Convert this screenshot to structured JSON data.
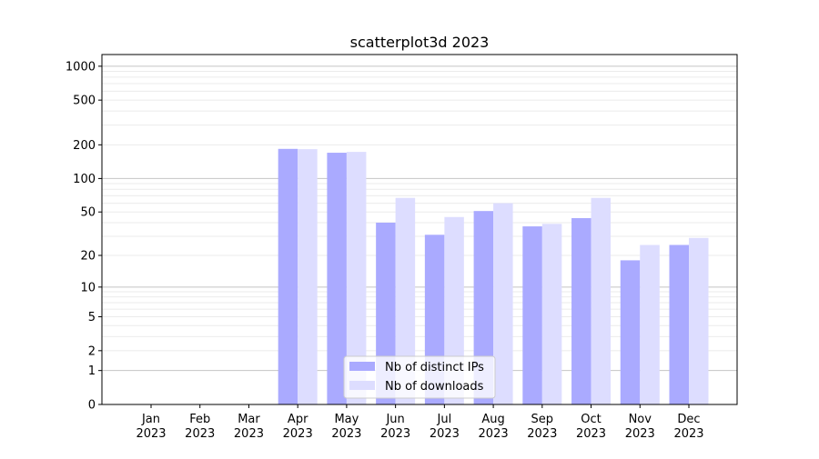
{
  "chart_data": {
    "type": "bar",
    "title": "scatterplot3d 2023",
    "xlabel": "",
    "ylabel": "",
    "yscale": "log10(1+y)",
    "ylim": [
      0,
      1270
    ],
    "yticks": [
      0,
      1,
      2,
      5,
      10,
      20,
      50,
      100,
      200,
      500,
      1000
    ],
    "grid": true,
    "legend_position": "lower center",
    "categories": [
      "Jan\n2023",
      "Feb\n2023",
      "Mar\n2023",
      "Apr\n2023",
      "May\n2023",
      "Jun\n2023",
      "Jul\n2023",
      "Aug\n2023",
      "Sep\n2023",
      "Oct\n2023",
      "Nov\n2023",
      "Dec\n2023"
    ],
    "series": [
      {
        "name": "Nb of distinct IPs",
        "color": "#aaaaff",
        "values": [
          0,
          0,
          0,
          184,
          170,
          40,
          31,
          51,
          37,
          44,
          18,
          25
        ]
      },
      {
        "name": "Nb of downloads",
        "color": "#ddddff",
        "values": [
          0,
          0,
          0,
          183,
          173,
          67,
          45,
          60,
          39,
          67,
          25,
          29
        ]
      }
    ]
  }
}
